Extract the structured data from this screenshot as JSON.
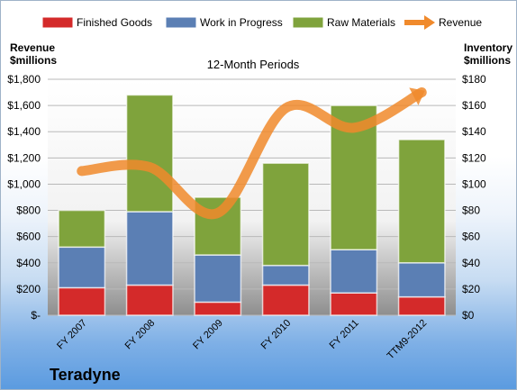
{
  "company": "Teradyne",
  "chart_data": {
    "type": "bar",
    "stacked": true,
    "title": "12-Month Periods",
    "categories": [
      "FY 2007",
      "FY 2008",
      "FY 2009",
      "FY 2010",
      "FY 2011",
      "TTM9-2012"
    ],
    "series": [
      {
        "name": "Finished Goods",
        "axis": "right",
        "color": "#d42a2a",
        "values": [
          21,
          23,
          10,
          23,
          17,
          14
        ]
      },
      {
        "name": "Work in Progress",
        "axis": "right",
        "color": "#5b7fb4",
        "values": [
          31,
          56,
          36,
          15,
          33,
          26
        ]
      },
      {
        "name": "Raw Materials",
        "axis": "right",
        "color": "#7fa33c",
        "values": [
          28,
          89,
          44,
          78,
          110,
          94
        ]
      }
    ],
    "line_series": {
      "name": "Revenue",
      "axis": "left",
      "color": "#f08a2c",
      "values": [
        1100,
        1130,
        780,
        1580,
        1430,
        1700
      ]
    },
    "y_left": {
      "label_line1": "Revenue",
      "label_line2": "$millions",
      "min": 0,
      "max": 1800,
      "ticks": [
        "$-",
        "$200",
        "$400",
        "$600",
        "$800",
        "$1,000",
        "$1,200",
        "$1,400",
        "$1,600",
        "$1,800"
      ]
    },
    "y_right": {
      "label_line1": "Inventory",
      "label_line2": "$millions",
      "min": 0,
      "max": 180,
      "ticks": [
        "$0",
        "$20",
        "$40",
        "$60",
        "$80",
        "$100",
        "$120",
        "$140",
        "$160",
        "$180"
      ]
    },
    "legend_position": "top",
    "grid": true
  }
}
